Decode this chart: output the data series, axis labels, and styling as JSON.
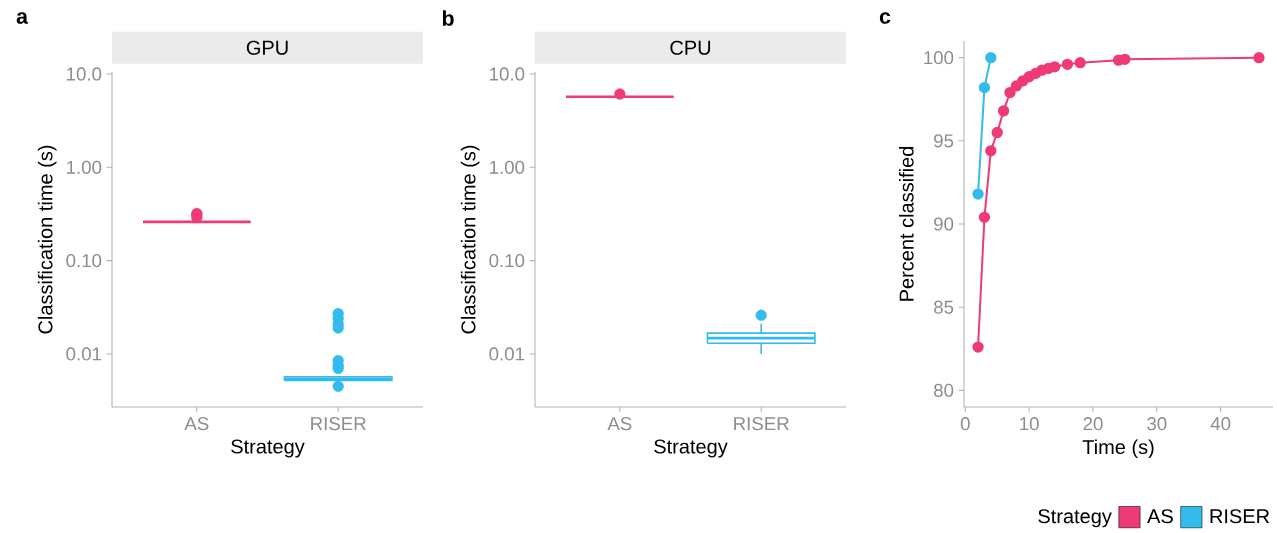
{
  "chart_data": [
    {
      "type": "box",
      "title": "GPU",
      "annotations": [
        "a"
      ],
      "xlabel": "Strategy",
      "ylabel": "Classification time (s)",
      "categories": [
        "AS",
        "RISER"
      ],
      "colors": [
        "#ee3a78",
        "#33bbee"
      ],
      "log": true,
      "ylim": [
        0.0027,
        10.5
      ],
      "yticks": [
        {
          "value": 10,
          "label": "10.0"
        },
        {
          "value": 1,
          "label": "1.00"
        },
        {
          "value": 0.1,
          "label": "0.10"
        },
        {
          "value": 0.01,
          "label": "0.01"
        }
      ],
      "boxes": [
        {
          "low": 0.26,
          "q1": 0.26,
          "median": 0.26,
          "q3": 0.26,
          "high": 0.26,
          "outliers": [
            0.29,
            0.31,
            0.32
          ]
        },
        {
          "low": 0.0052,
          "q1": 0.0052,
          "median": 0.0054,
          "q3": 0.0057,
          "high": 0.0057,
          "outliers": [
            0.0045,
            0.007,
            0.0075,
            0.0085,
            0.019,
            0.021,
            0.024,
            0.027
          ]
        }
      ]
    },
    {
      "type": "box",
      "title": "CPU",
      "annotations": [
        "b"
      ],
      "xlabel": "Strategy",
      "ylabel": "Classification time (s)",
      "categories": [
        "AS",
        "RISER"
      ],
      "colors": [
        "#ee3a78",
        "#33bbee"
      ],
      "log": true,
      "ylim": [
        0.0027,
        10.5
      ],
      "yticks": [
        {
          "value": 10,
          "label": "10.0"
        },
        {
          "value": 1,
          "label": "1.00"
        },
        {
          "value": 0.1,
          "label": "0.10"
        },
        {
          "value": 0.01,
          "label": "0.01"
        }
      ],
      "boxes": [
        {
          "low": 5.7,
          "q1": 5.7,
          "median": 5.7,
          "q3": 5.7,
          "high": 5.7,
          "outliers": [
            6.1
          ]
        },
        {
          "low": 0.01,
          "q1": 0.013,
          "median": 0.0148,
          "q3": 0.0167,
          "high": 0.021,
          "outliers": [
            0.026
          ]
        }
      ]
    },
    {
      "type": "line",
      "annotations": [
        "c"
      ],
      "xlabel": "Time (s)",
      "ylabel": "Percent classified",
      "xlim": [
        -0.2,
        48.2
      ],
      "ylim": [
        79,
        101
      ],
      "xticks": [
        0,
        10,
        20,
        30,
        40
      ],
      "yticks": [
        80,
        85,
        90,
        95,
        100
      ],
      "marker": "circle",
      "legend": "bottom",
      "legend_title": "Strategy",
      "series": [
        {
          "name": "AS",
          "color": "#ee3a78",
          "x": [
            2,
            3,
            4,
            5,
            6,
            7,
            8,
            9,
            10,
            11,
            12,
            13,
            14,
            16,
            18,
            24,
            25,
            46
          ],
          "values": [
            82.6,
            90.4,
            94.4,
            95.5,
            96.8,
            97.9,
            98.3,
            98.6,
            98.85,
            99.05,
            99.25,
            99.35,
            99.45,
            99.6,
            99.7,
            99.85,
            99.9,
            100
          ]
        },
        {
          "name": "RISER",
          "color": "#33bbee",
          "x": [
            2,
            3,
            4
          ],
          "values": [
            91.8,
            98.2,
            100
          ]
        }
      ]
    }
  ]
}
